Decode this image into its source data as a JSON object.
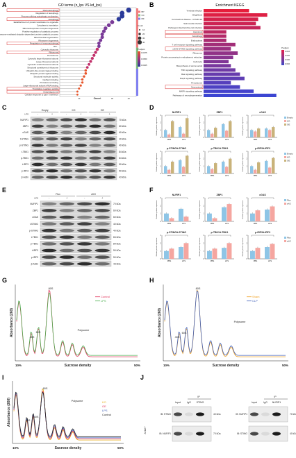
{
  "panels": {
    "A": {
      "letter": "A",
      "title": "GO terms (n_lps VS kd_lps)",
      "xlabel": "Count",
      "legend_ont_title": "",
      "ont": [
        "BP",
        "CC",
        "MF"
      ],
      "count_title": "Count",
      "counts": [
        "10",
        "20",
        "30",
        "40"
      ],
      "padj_title": "P.adjust",
      "padj": [
        "0.0075",
        "0.0050",
        "0.0025"
      ],
      "terms": [
        "Macroautophagy",
        "Regulation of autophagy",
        "Process utilizing autophagic mechanism",
        "Autophagy",
        "Establishment of protein localization to organelle",
        "Cytoplasmic translation",
        "Ribonucleoprotein complex biogenesis",
        "Positive regulation of catabolic process",
        "Proteasome-mediated ubiquitin-dependent protein catabolic process",
        "Mitochondrial organization",
        "Ribosome biogenesis",
        "Regulation of macroautophagy",
        "Rib...",
        "Cytosolic ribosome",
        "Ribosome",
        "Peroxisome",
        "Cytosolic large ribosomal subunit",
        "Large ribosomal subunit",
        "Cytosolic small ribosomal subunit",
        "Structural constituent of ribosome",
        "Ubiquitin-like protein ligase binding",
        "Ubiquitin protein ligase binding",
        "Structural molecule activity",
        "Cadherin binding",
        "Proteasome binding",
        "Large-ribosomal subunit rRNA binding",
        "Translation regulator activity",
        "Autophagosome",
        "Cellular response to type I interferon"
      ],
      "term_counts": [
        40,
        36,
        36,
        34,
        30,
        28,
        26,
        25,
        24,
        24,
        23,
        22,
        22,
        21,
        20,
        19,
        18,
        17,
        16,
        15,
        14,
        14,
        13,
        12,
        12,
        11,
        10,
        9,
        9
      ]
    },
    "B": {
      "letter": "B",
      "title": "Enrichment KEGG",
      "padj_title": "P.adjust",
      "padj": [
        "0.010",
        "0.020",
        "0.030",
        "0.040"
      ],
      "terms": [
        "Yersinia infection",
        "Shigellosis",
        "Coronavirus disease - COVID-19",
        "Salmonella infection",
        "Pathogenic Escherichia coli infection",
        "Apoptosis",
        "Autophagy",
        "Endocytosis",
        "T cell receptor signaling pathway",
        "cGAS-STING signaling pathway",
        "Ribosome",
        "Protein processing in endoplasmic reticulum",
        "Cell cycle",
        "Biosynthesis of amino acids",
        "TNF signaling pathway",
        "Ras signaling pathway",
        "Rap1 signaling pathway",
        "Peroxisome",
        "Necroptosis",
        "MAPK signaling pathway",
        "Pathways of neurodegeneration"
      ],
      "values": [
        20,
        28,
        24,
        23,
        25,
        10,
        10,
        10,
        14,
        12,
        15,
        13,
        11,
        12,
        14,
        16,
        18,
        12,
        16,
        22,
        32
      ]
    },
    "C": {
      "letter": "C",
      "groups": [
        "Empty",
        "KO",
        "OE"
      ],
      "lps_label": "LPS",
      "lps_signs": [
        "-",
        "+",
        "-",
        "+",
        "-",
        "+"
      ],
      "rows": [
        {
          "name": "NUFIP1",
          "kda": "70 kDa"
        },
        {
          "name": "ZBP1",
          "kda": "60 kDa"
        },
        {
          "name": "cGAS",
          "kda": "60 kDa"
        },
        {
          "name": "t-STING",
          "kda": "40 kDa"
        },
        {
          "name": "p-STING",
          "kda": "40 kDa"
        },
        {
          "name": "t-TBK1",
          "kda": "84 kDa"
        },
        {
          "name": "p-TBK1",
          "kda": "84 kDa"
        },
        {
          "name": "t-IRF3",
          "kda": "50 kDa"
        },
        {
          "name": "p-IRF3",
          "kda": "50 kDa"
        },
        {
          "name": "β-Actin",
          "kda": "43 kDa"
        }
      ]
    },
    "D": {
      "letter": "D",
      "ylabel": "Relative protein expression",
      "xcats": [
        "PBS",
        "LPS"
      ],
      "legend": [
        "Empty",
        "KO",
        "OE"
      ],
      "charts": [
        {
          "title": "NUFIP1",
          "values": [
            [
              1.0,
              0.4,
              2.2
            ],
            [
              1.4,
              0.5,
              2.6
            ]
          ]
        },
        {
          "title": "ZBP1",
          "values": [
            [
              1.0,
              0.5,
              1.3
            ],
            [
              1.8,
              0.9,
              2.2
            ]
          ]
        },
        {
          "title": "cGAS",
          "values": [
            [
              1.0,
              0.8,
              1.2
            ],
            [
              1.2,
              1.0,
              1.4
            ]
          ]
        },
        {
          "title": "p-STING/t-STING",
          "values": [
            [
              1.0,
              0.5,
              1.6
            ],
            [
              1.8,
              0.9,
              2.4
            ]
          ]
        },
        {
          "title": "p-TBK1/t-TBK1",
          "values": [
            [
              1.0,
              0.6,
              1.4
            ],
            [
              1.6,
              0.9,
              2.0
            ]
          ]
        },
        {
          "title": "p-IRF3/t-IRF3",
          "values": [
            [
              1.0,
              0.5,
              1.5
            ],
            [
              1.7,
              0.8,
              2.1
            ]
          ]
        }
      ]
    },
    "E": {
      "letter": "E",
      "groups": [
        "Flox",
        "cKO"
      ],
      "lps_label": "LPS",
      "lps_signs": [
        "-",
        "+",
        "-",
        "+"
      ],
      "rows": [
        {
          "name": "NUFIP1",
          "kda": "70 kDa"
        },
        {
          "name": "ZBP1",
          "kda": "60 kDa"
        },
        {
          "name": "cGAS",
          "kda": "60 kDa"
        },
        {
          "name": "t-STING",
          "kda": "40 kDa"
        },
        {
          "name": "p-STING",
          "kda": "40 kDa"
        },
        {
          "name": "t-TBK1",
          "kda": "84 kDa"
        },
        {
          "name": "p-TBK1",
          "kda": "84 kDa"
        },
        {
          "name": "t-IRF3",
          "kda": "50 kDa"
        },
        {
          "name": "p-IRF3",
          "kda": "50 kDa"
        },
        {
          "name": "β-Actin",
          "kda": "43 kDa"
        }
      ]
    },
    "F": {
      "letter": "F",
      "ylabel": "Relative protein expression",
      "xcats": [
        "PBS",
        "LPS"
      ],
      "legend": [
        "Flox",
        "cKO"
      ],
      "charts": [
        {
          "title": "NUFIP1",
          "values": [
            [
              1.0,
              0.4
            ],
            [
              1.6,
              0.6
            ]
          ]
        },
        {
          "title": "ZBP1",
          "values": [
            [
              1.0,
              0.4
            ],
            [
              1.8,
              2.2
            ]
          ]
        },
        {
          "title": "cGAS",
          "values": [
            [
              1.0,
              1.4
            ],
            [
              1.5,
              1.9
            ]
          ]
        },
        {
          "title": "p-STING/t-STING",
          "values": [
            [
              1.0,
              1.3
            ],
            [
              1.5,
              2.0
            ]
          ]
        },
        {
          "title": "p-TBK1/t-TBK1",
          "values": [
            [
              1.0,
              1.3
            ],
            [
              1.4,
              2.0
            ]
          ]
        },
        {
          "title": "p-IRF3/t-IRF3",
          "values": [
            [
              1.0,
              1.4
            ],
            [
              1.5,
              1.9
            ]
          ]
        }
      ]
    },
    "G": {
      "letter": "G",
      "ylabel": "Absorbance (260)",
      "xlabel": "Sucrose density",
      "x_start": "10%",
      "x_end": "50%",
      "peaks": [
        "40S",
        "60S",
        "80S",
        "Polysome"
      ],
      "legend": [
        "Control",
        "LPS"
      ]
    },
    "H": {
      "letter": "H",
      "ylabel": "Absorbance (260)",
      "xlabel": "Sucrose density",
      "x_start": "10%",
      "x_end": "50%",
      "peaks": [
        "40S",
        "60S",
        "80S",
        "Polysome"
      ],
      "legend": [
        "Sham",
        "CLP"
      ]
    },
    "I": {
      "letter": "I",
      "ylabel": "Absorbance (260)",
      "xlabel": "Sucrose density",
      "x_start": "10%",
      "x_end": "50%",
      "peaks": [
        "40S",
        "60S",
        "80S",
        "Polysome"
      ],
      "legend": [
        "KO",
        "OE",
        "LPS",
        "Control"
      ]
    },
    "J": {
      "letter": "J",
      "cell_label": "Jurkat T",
      "ip_label": "IP",
      "left": {
        "cols": [
          "Input",
          "IgG",
          "STING"
        ],
        "rows": [
          {
            "ib": "IB: STING",
            "kda": "40 kDa"
          },
          {
            "ib": "IB: NUFIP1",
            "kda": "70 kDa"
          }
        ]
      },
      "right": {
        "cols": [
          "Input",
          "IgG",
          "NUFIP1"
        ],
        "rows": [
          {
            "ib": "IB: NUFIP1",
            "kda": "70 kDa"
          },
          {
            "ib": "IB: STING",
            "kda": "40 kDa"
          }
        ]
      }
    }
  },
  "colors": {
    "empty": "#8ec5e6",
    "ko": "#f5a6a0",
    "oe": "#c9b37a",
    "flox": "#8ec5e6",
    "cko": "#f5a6a0",
    "control": "#e0335a",
    "lps": "#4caf50",
    "sham": "#f0a020",
    "clp": "#3f5fb8",
    "i_ko": "#e8b020",
    "i_oe": "#e0335a",
    "i_lps": "#3f5fb8",
    "i_ctrl": "#222222",
    "highlight": "#d93030"
  }
}
